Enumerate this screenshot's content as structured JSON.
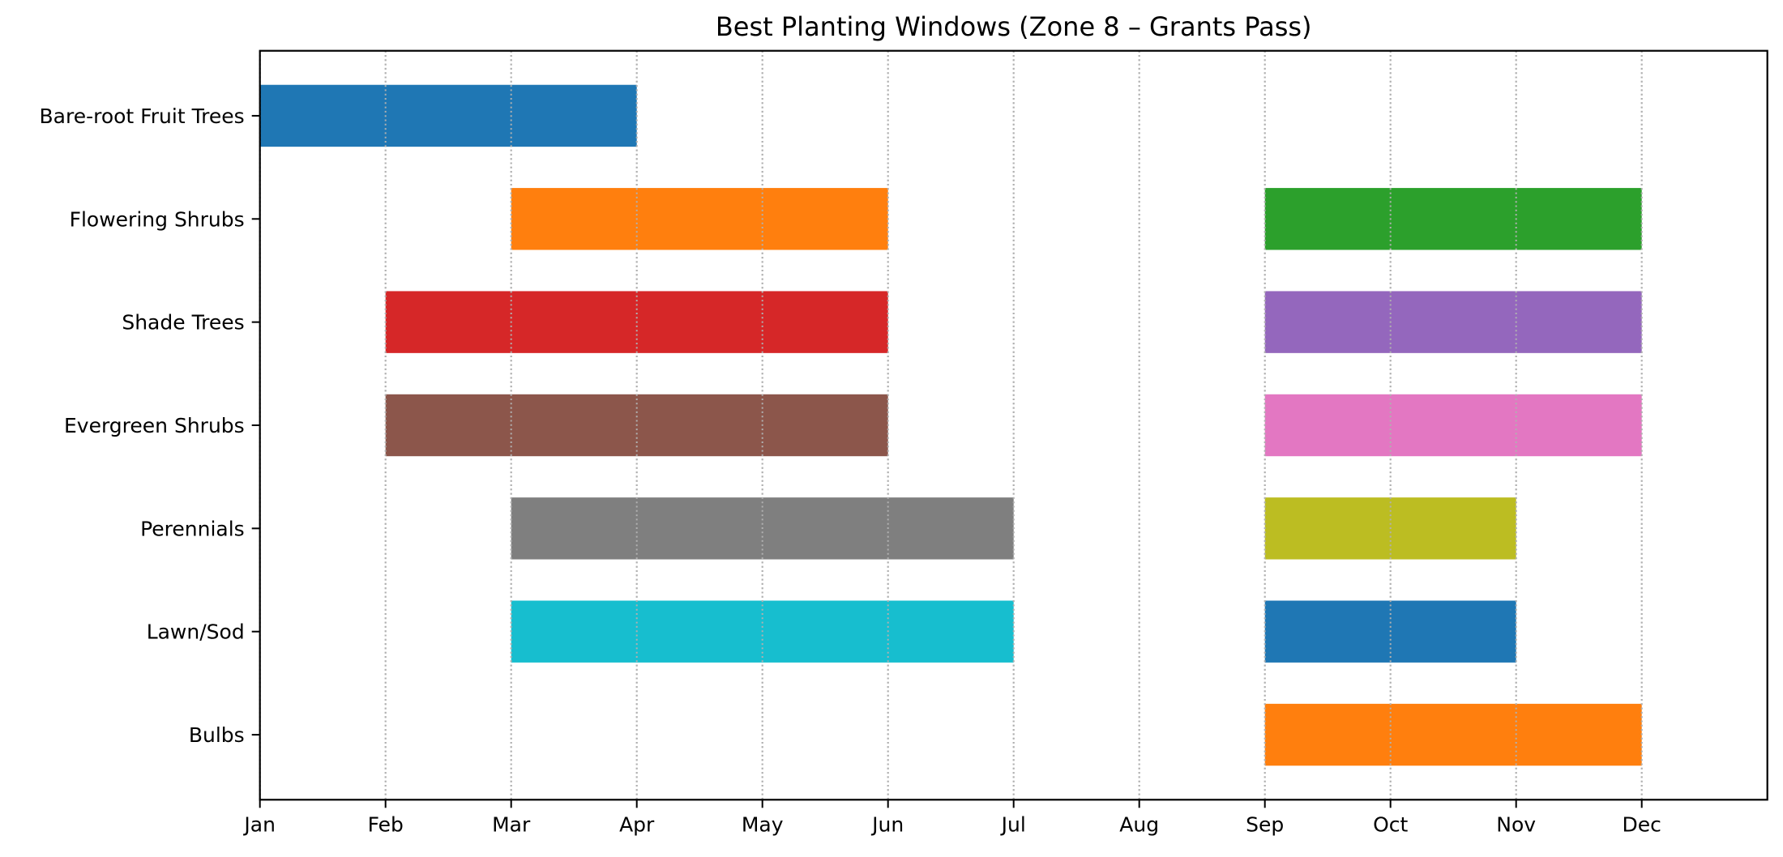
{
  "chart_data": {
    "type": "bar",
    "orientation": "horizontal",
    "subtype": "gantt",
    "title": "Best Planting Windows (Zone 8 – Grants Pass)",
    "xlabel": "",
    "ylabel": "",
    "xlim": [
      0,
      12
    ],
    "ylim": [
      -0.63,
      6.63
    ],
    "grid": {
      "axis": "x",
      "style": "dotted",
      "color": "#b0b0b0"
    },
    "legend": null,
    "x_ticks": [
      0,
      1,
      2,
      3,
      4,
      5,
      6,
      7,
      8,
      9,
      10,
      11
    ],
    "x_tick_labels": [
      "Jan",
      "Feb",
      "Mar",
      "Apr",
      "May",
      "Jun",
      "Jul",
      "Aug",
      "Sep",
      "Oct",
      "Nov",
      "Dec"
    ],
    "categories": [
      "Bare-root Fruit Trees",
      "Flowering Shrubs",
      "Shade Trees",
      "Evergreen Shrubs",
      "Perennials",
      "Lawn/Sod",
      "Bulbs"
    ],
    "bar_height": 0.6,
    "bars": [
      {
        "category": "Bare-root Fruit Trees",
        "start": 0,
        "end": 3,
        "start_label": "Jan",
        "end_label": "Apr",
        "color": "#1f77b4"
      },
      {
        "category": "Flowering Shrubs",
        "start": 2,
        "end": 5,
        "start_label": "Mar",
        "end_label": "Jun",
        "color": "#ff7f0e"
      },
      {
        "category": "Flowering Shrubs",
        "start": 8,
        "end": 11,
        "start_label": "Sep",
        "end_label": "Dec",
        "color": "#2ca02c"
      },
      {
        "category": "Shade Trees",
        "start": 1,
        "end": 5,
        "start_label": "Feb",
        "end_label": "Jun",
        "color": "#d62728"
      },
      {
        "category": "Shade Trees",
        "start": 8,
        "end": 11,
        "start_label": "Sep",
        "end_label": "Dec",
        "color": "#9467bd"
      },
      {
        "category": "Evergreen Shrubs",
        "start": 1,
        "end": 5,
        "start_label": "Feb",
        "end_label": "Jun",
        "color": "#8c564b"
      },
      {
        "category": "Evergreen Shrubs",
        "start": 8,
        "end": 11,
        "start_label": "Sep",
        "end_label": "Dec",
        "color": "#e377c2"
      },
      {
        "category": "Perennials",
        "start": 2,
        "end": 6,
        "start_label": "Mar",
        "end_label": "Jul",
        "color": "#7f7f7f"
      },
      {
        "category": "Perennials",
        "start": 8,
        "end": 10,
        "start_label": "Sep",
        "end_label": "Nov",
        "color": "#bcbd22"
      },
      {
        "category": "Lawn/Sod",
        "start": 2,
        "end": 6,
        "start_label": "Mar",
        "end_label": "Jul",
        "color": "#17becf"
      },
      {
        "category": "Lawn/Sod",
        "start": 8,
        "end": 10,
        "start_label": "Sep",
        "end_label": "Nov",
        "color": "#1f77b4"
      },
      {
        "category": "Bulbs",
        "start": 8,
        "end": 11,
        "start_label": "Sep",
        "end_label": "Dec",
        "color": "#ff7f0e"
      }
    ]
  }
}
